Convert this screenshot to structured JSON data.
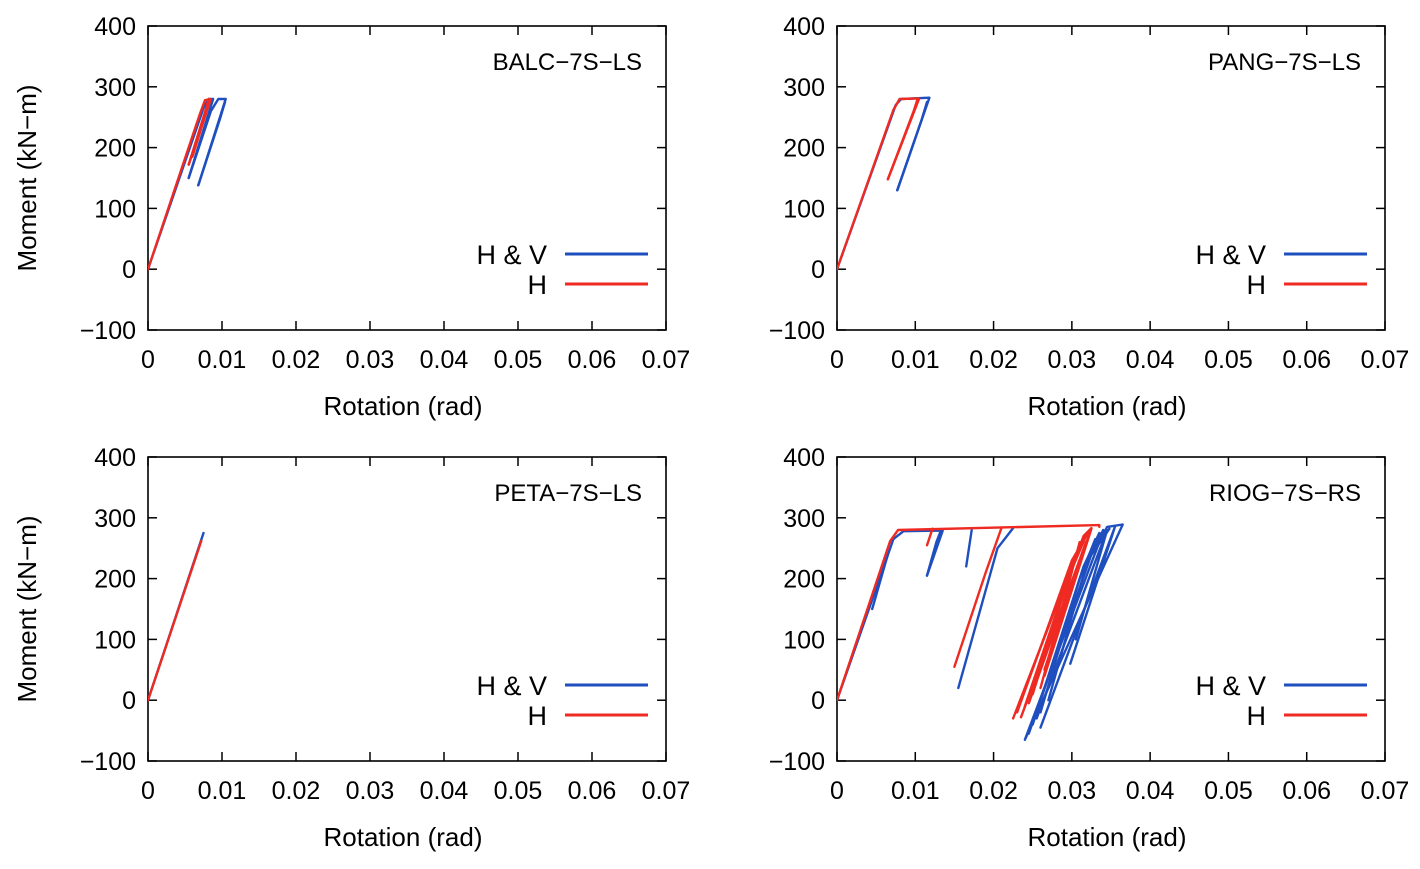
{
  "colors": {
    "hv": "#1f4fbf",
    "h": "#ee2a22",
    "axis": "#000000"
  },
  "legend": {
    "labels": [
      "H & V",
      "H"
    ],
    "placement": "center-right"
  },
  "chart_data": [
    {
      "type": "line",
      "title": "BALC−7S−LS",
      "xlabel": "Rotation (rad)",
      "ylabel": "Moment (kN−m)",
      "xlim": [
        0,
        0.07
      ],
      "ylim": [
        -100,
        400
      ],
      "xticks": [
        "0",
        "0.01",
        "0.02",
        "0.03",
        "0.04",
        "0.05",
        "0.06",
        "0.07"
      ],
      "yticks": [
        "400",
        "300",
        "200",
        "100",
        "0",
        "−100"
      ],
      "series": [
        {
          "name": "H & V",
          "color": "#1f4fbf",
          "segments": [
            [
              [
                0,
                0
              ],
              [
                0.0075,
                265
              ],
              [
                0.0082,
                280
              ],
              [
                0.0088,
                280
              ],
              [
                0.0055,
                150
              ]
            ],
            [
              [
                0.0055,
                150
              ],
              [
                0.0085,
                260
              ],
              [
                0.0095,
                280
              ],
              [
                0.0105,
                280
              ],
              [
                0.0068,
                138
              ]
            ],
            [
              [
                0.0068,
                138
              ],
              [
                0.0098,
                250
              ],
              [
                0.0104,
                275
              ]
            ]
          ]
        },
        {
          "name": "H",
          "color": "#ee2a22",
          "segments": [
            [
              [
                0,
                0
              ],
              [
                0.007,
                255
              ],
              [
                0.0077,
                278
              ],
              [
                0.0085,
                280
              ],
              [
                0.0055,
                172
              ]
            ],
            [
              [
                0.0055,
                172
              ],
              [
                0.0078,
                262
              ],
              [
                0.0082,
                280
              ]
            ],
            [
              [
                0.006,
                185
              ],
              [
                0.0078,
                255
              ]
            ]
          ]
        }
      ]
    },
    {
      "type": "line",
      "title": "PANG−7S−LS",
      "xlabel": "Rotation (rad)",
      "ylabel": "",
      "xlim": [
        0,
        0.07
      ],
      "ylim": [
        -100,
        400
      ],
      "xticks": [
        "0",
        "0.01",
        "0.02",
        "0.03",
        "0.04",
        "0.05",
        "0.06",
        "0.07"
      ],
      "yticks": [
        "400",
        "300",
        "200",
        "100",
        "0",
        "−100"
      ],
      "series": [
        {
          "name": "H & V",
          "color": "#1f4fbf",
          "segments": [
            [
              [
                0,
                0
              ],
              [
                0.0075,
                270
              ],
              [
                0.0082,
                280
              ],
              [
                0.0118,
                282
              ],
              [
                0.0077,
                130
              ]
            ],
            [
              [
                0.0077,
                130
              ],
              [
                0.0108,
                245
              ],
              [
                0.0115,
                275
              ]
            ]
          ]
        },
        {
          "name": "H",
          "color": "#ee2a22",
          "segments": [
            [
              [
                0,
                0
              ],
              [
                0.0072,
                262
              ],
              [
                0.008,
                280
              ],
              [
                0.0105,
                281
              ],
              [
                0.0065,
                148
              ]
            ],
            [
              [
                0.0065,
                148
              ],
              [
                0.0098,
                260
              ],
              [
                0.0103,
                280
              ]
            ]
          ]
        }
      ]
    },
    {
      "type": "line",
      "title": "PETA−7S−LS",
      "xlabel": "Rotation (rad)",
      "ylabel": "Moment (kN−m)",
      "xlim": [
        0,
        0.07
      ],
      "ylim": [
        -100,
        400
      ],
      "xticks": [
        "0",
        "0.01",
        "0.02",
        "0.03",
        "0.04",
        "0.05",
        "0.06",
        "0.07"
      ],
      "yticks": [
        "400",
        "300",
        "200",
        "100",
        "0",
        "−100"
      ],
      "series": [
        {
          "name": "H & V",
          "color": "#1f4fbf",
          "segments": [
            [
              [
                0,
                0
              ],
              [
                0.0075,
                275
              ]
            ]
          ]
        },
        {
          "name": "H",
          "color": "#ee2a22",
          "segments": [
            [
              [
                0,
                0
              ],
              [
                0.0072,
                262
              ]
            ]
          ]
        }
      ]
    },
    {
      "type": "line",
      "title": "RIOG−7S−RS",
      "xlabel": "Rotation (rad)",
      "ylabel": "",
      "xlim": [
        0,
        0.07
      ],
      "ylim": [
        -100,
        400
      ],
      "xticks": [
        "0",
        "0.01",
        "0.02",
        "0.03",
        "0.04",
        "0.05",
        "0.06",
        "0.07"
      ],
      "yticks": [
        "400",
        "300",
        "200",
        "100",
        "0",
        "−100"
      ],
      "series": [
        {
          "name": "H & V",
          "color": "#1f4fbf",
          "segments": [
            [
              [
                0,
                0
              ],
              [
                0.0072,
                265
              ],
              [
                0.0085,
                278
              ],
              [
                0.0135,
                279
              ],
              [
                0.0115,
                205
              ]
            ],
            [
              [
                0.0115,
                205
              ],
              [
                0.0127,
                260
              ],
              [
                0.0133,
                280
              ]
            ],
            [
              [
                0.0165,
                220
              ],
              [
                0.0172,
                280
              ]
            ],
            [
              [
                0.0155,
                20
              ],
              [
                0.0205,
                250
              ],
              [
                0.0225,
                283
              ]
            ],
            [
              [
                0.024,
                -65
              ],
              [
                0.0335,
                260
              ],
              [
                0.0345,
                285
              ],
              [
                0.0365,
                289
              ],
              [
                0.024,
                -65
              ]
            ],
            [
              [
                0.0245,
                -55
              ],
              [
                0.0325,
                240
              ],
              [
                0.034,
                280
              ]
            ],
            [
              [
                0.025,
                -40
              ],
              [
                0.0315,
                220
              ],
              [
                0.0335,
                275
              ]
            ],
            [
              [
                0.026,
                -20
              ],
              [
                0.031,
                200
              ],
              [
                0.033,
                265
              ]
            ],
            [
              [
                0.027,
                0
              ],
              [
                0.032,
                230
              ],
              [
                0.0348,
                282
              ]
            ],
            [
              [
                0.026,
                -45
              ],
              [
                0.0355,
                285
              ],
              [
                0.0298,
                60
              ]
            ],
            [
              [
                0.0305,
                100
              ],
              [
                0.0345,
                280
              ],
              [
                0.0255,
                -30
              ]
            ],
            [
              [
                0.0045,
                150
              ],
              [
                0.0065,
                240
              ]
            ]
          ]
        },
        {
          "name": "H",
          "color": "#ee2a22",
          "segments": [
            [
              [
                0,
                0
              ],
              [
                0.0068,
                262
              ],
              [
                0.0078,
                280
              ],
              [
                0.0335,
                288
              ],
              [
                0.0335,
                285
              ]
            ],
            [
              [
                0.0115,
                255
              ],
              [
                0.0122,
                282
              ]
            ],
            [
              [
                0.015,
                55
              ],
              [
                0.019,
                210
              ],
              [
                0.021,
                283
              ]
            ],
            [
              [
                0.0225,
                -30
              ],
              [
                0.0315,
                270
              ],
              [
                0.0325,
                283
              ]
            ],
            [
              [
                0.023,
                -20
              ],
              [
                0.03,
                230
              ],
              [
                0.0322,
                278
              ]
            ],
            [
              [
                0.024,
                -10
              ],
              [
                0.0295,
                200
              ],
              [
                0.0318,
                270
              ]
            ],
            [
              [
                0.0235,
                -28
              ],
              [
                0.0325,
                282
              ],
              [
                0.0265,
                40
              ]
            ],
            [
              [
                0.025,
                10
              ],
              [
                0.0305,
                240
              ],
              [
                0.032,
                275
              ]
            ],
            [
              [
                0.0265,
                50
              ],
              [
                0.0318,
                260
              ],
              [
                0.0245,
                -5
              ]
            ],
            [
              [
                0.0275,
                90
              ],
              [
                0.031,
                260
              ],
              [
                0.026,
                20
              ]
            ]
          ]
        }
      ]
    }
  ]
}
